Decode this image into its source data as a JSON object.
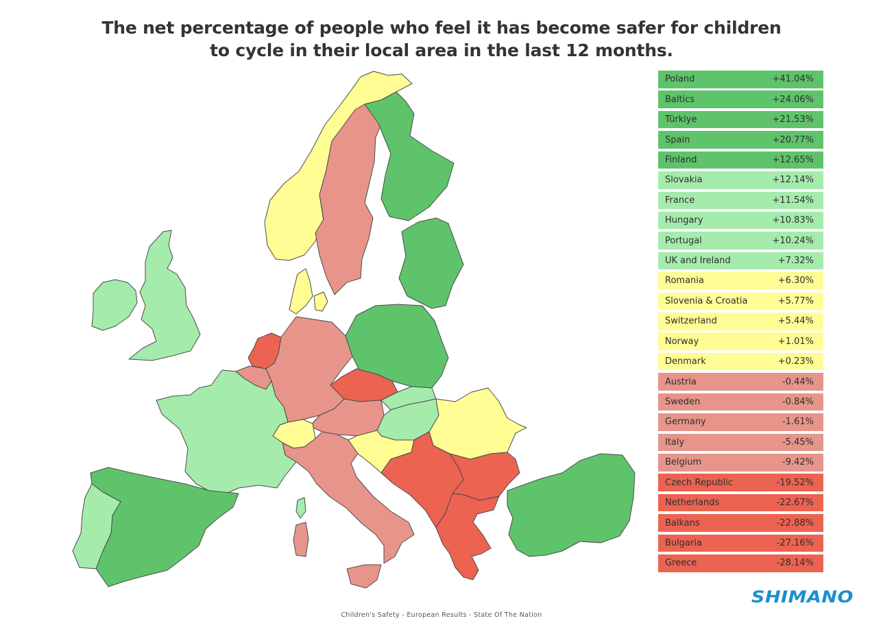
{
  "title": {
    "line1": "The net percentage of people who feel it has become safer for children",
    "line2": "to cycle in their local area in the last 12 months."
  },
  "colors": {
    "strong_positive": "#5fc36b",
    "positive": "#a5ebac",
    "neutral": "#fffd94",
    "negative": "#e7958a",
    "strong_negative": "#ec6351"
  },
  "legend": [
    {
      "name": "Poland",
      "value": "+41.04%",
      "band": "strong_positive"
    },
    {
      "name": "Baltics",
      "value": "+24.06%",
      "band": "strong_positive"
    },
    {
      "name": "Türkiye",
      "value": "+21.53%",
      "band": "strong_positive"
    },
    {
      "name": "Spain",
      "value": "+20.77%",
      "band": "strong_positive"
    },
    {
      "name": "Finland",
      "value": "+12.65%",
      "band": "strong_positive"
    },
    {
      "name": "Slovakia",
      "value": "+12.14%",
      "band": "positive"
    },
    {
      "name": "France",
      "value": "+11.54%",
      "band": "positive"
    },
    {
      "name": "Hungary",
      "value": "+10.83%",
      "band": "positive"
    },
    {
      "name": "Portugal",
      "value": "+10.24%",
      "band": "positive"
    },
    {
      "name": "UK and Ireland",
      "value": "+7.32%",
      "band": "positive"
    },
    {
      "name": "Romania",
      "value": "+6.30%",
      "band": "neutral"
    },
    {
      "name": "Slovenia & Croatia",
      "value": "+5.77%",
      "band": "neutral"
    },
    {
      "name": "Switzerland",
      "value": "+5.44%",
      "band": "neutral"
    },
    {
      "name": "Norway",
      "value": "+1.01%",
      "band": "neutral"
    },
    {
      "name": "Denmark",
      "value": "+0.23%",
      "band": "neutral"
    },
    {
      "name": "Austria",
      "value": "-0.44%",
      "band": "negative"
    },
    {
      "name": "Sweden",
      "value": "-0.84%",
      "band": "negative"
    },
    {
      "name": "Germany",
      "value": "-1.61%",
      "band": "negative"
    },
    {
      "name": "Italy",
      "value": "-5.45%",
      "band": "negative"
    },
    {
      "name": "Belgium",
      "value": "-9.42%",
      "band": "negative"
    },
    {
      "name": "Czech Republic",
      "value": "-19.52%",
      "band": "strong_negative"
    },
    {
      "name": "Netherlands",
      "value": "-22.67%",
      "band": "strong_negative"
    },
    {
      "name": "Balkans",
      "value": "-22.88%",
      "band": "strong_negative"
    },
    {
      "name": "Bulgaria",
      "value": "-27.16%",
      "band": "strong_negative"
    },
    {
      "name": "Greece",
      "value": "-28.14%",
      "band": "strong_negative"
    }
  ],
  "footer": "Children's Safety - European Results - State Of The Nation",
  "logo": "SHIMANO"
}
